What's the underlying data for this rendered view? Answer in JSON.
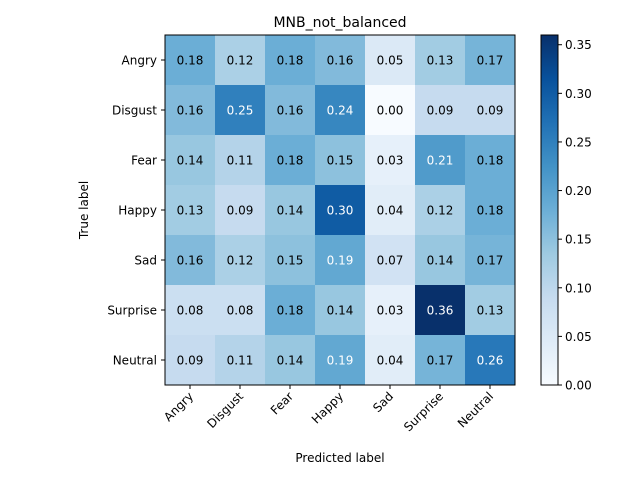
{
  "chart_data": {
    "type": "heatmap",
    "title": "MNB_not_balanced",
    "xlabel": "Predicted label",
    "ylabel": "True label",
    "x_categories": [
      "Angry",
      "Disgust",
      "Fear",
      "Happy",
      "Sad",
      "Surprise",
      "Neutral"
    ],
    "y_categories": [
      "Angry",
      "Disgust",
      "Fear",
      "Happy",
      "Sad",
      "Surprise",
      "Neutral"
    ],
    "values": [
      [
        0.18,
        0.12,
        0.18,
        0.16,
        0.05,
        0.13,
        0.17
      ],
      [
        0.16,
        0.25,
        0.16,
        0.24,
        0.0,
        0.09,
        0.09
      ],
      [
        0.14,
        0.11,
        0.18,
        0.15,
        0.03,
        0.21,
        0.18
      ],
      [
        0.13,
        0.09,
        0.14,
        0.3,
        0.04,
        0.12,
        0.18
      ],
      [
        0.16,
        0.12,
        0.15,
        0.19,
        0.07,
        0.14,
        0.17
      ],
      [
        0.08,
        0.08,
        0.18,
        0.14,
        0.03,
        0.36,
        0.13
      ],
      [
        0.09,
        0.11,
        0.14,
        0.19,
        0.04,
        0.17,
        0.26
      ]
    ],
    "colormap": "Blues",
    "color_range": [
      0.0,
      0.36
    ],
    "colorbar_ticks": [
      "0.00",
      "0.05",
      "0.10",
      "0.15",
      "0.20",
      "0.25",
      "0.30",
      "0.35"
    ],
    "grid": false,
    "legend": "colorbar-right"
  }
}
